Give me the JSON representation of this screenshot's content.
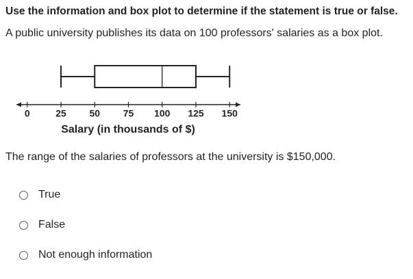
{
  "instruction": "Use the information and box plot to determine if the statement is true or false.",
  "prompt": "A public university publishes its data on 100 professors' salaries as a box plot.",
  "chart_data": {
    "type": "box",
    "xlabel": "Salary (in thousands of $)",
    "xlim": [
      -8,
      158
    ],
    "xticks": [
      0,
      25,
      50,
      75,
      100,
      125,
      150
    ],
    "values": {
      "min": 25,
      "q1": 50,
      "median": 100,
      "q3": 125,
      "max": 150
    }
  },
  "statement": "The range of the salaries of professors at the university is $150,000.",
  "options": [
    "True",
    "False",
    "Not enough information"
  ]
}
